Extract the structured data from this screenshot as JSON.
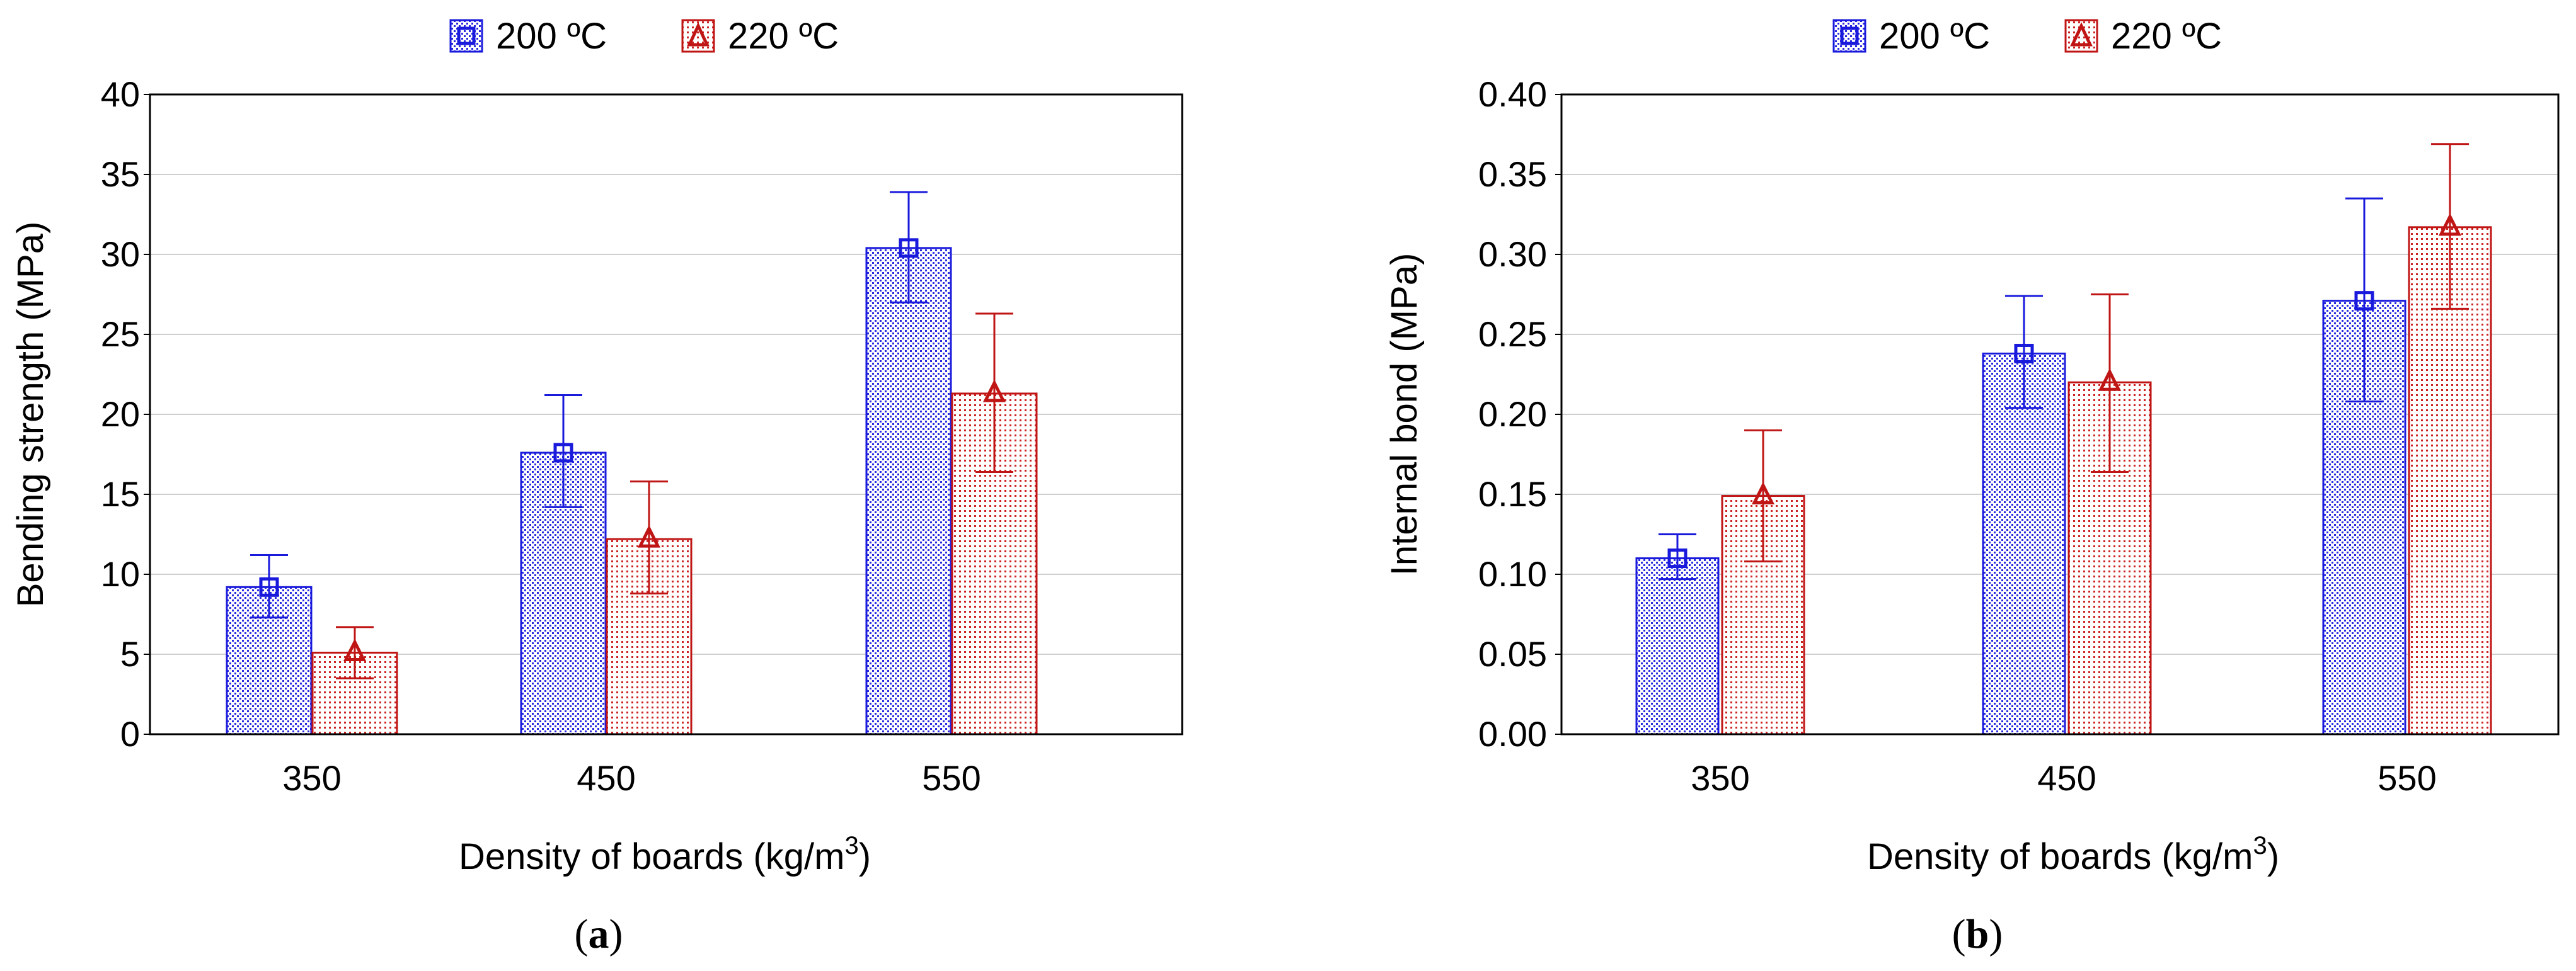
{
  "chart_data": [
    {
      "type": "bar",
      "panel_label": "a",
      "categories": [
        "350",
        "450",
        "550"
      ],
      "series": [
        {
          "name": "200 ºC",
          "color": "#1a1adc",
          "marker": "square",
          "values": [
            9.2,
            17.6,
            30.4
          ],
          "error_low": [
            7.3,
            14.2,
            27.0
          ],
          "error_high": [
            11.2,
            21.2,
            33.9
          ]
        },
        {
          "name": "220 ºC",
          "color": "#c01515",
          "marker": "triangle",
          "values": [
            5.1,
            12.2,
            21.3
          ],
          "error_low": [
            3.5,
            8.8,
            16.4
          ],
          "error_high": [
            6.7,
            15.8,
            26.3
          ]
        }
      ],
      "xlabel": "Density of boards (kg/m",
      "xlabel_superscript": "3",
      "xlabel_close": ")",
      "ylabel": "Bending strength (MPa)",
      "ylim": [
        0,
        40
      ],
      "yticks": [
        "0",
        "5",
        "10",
        "15",
        "20",
        "25",
        "30",
        "35",
        "40"
      ],
      "grid": true,
      "legend": "top-center"
    },
    {
      "type": "bar",
      "panel_label": "b",
      "categories": [
        "350",
        "450",
        "550"
      ],
      "series": [
        {
          "name": "200 ºC",
          "color": "#1a1adc",
          "marker": "square",
          "values": [
            0.11,
            0.238,
            0.271
          ],
          "error_low": [
            0.097,
            0.204,
            0.208
          ],
          "error_high": [
            0.125,
            0.274,
            0.335
          ]
        },
        {
          "name": "220 ºC",
          "color": "#c01515",
          "marker": "triangle",
          "values": [
            0.149,
            0.22,
            0.317
          ],
          "error_low": [
            0.108,
            0.164,
            0.266
          ],
          "error_high": [
            0.19,
            0.275,
            0.369
          ]
        }
      ],
      "xlabel": "Density of boards (kg/m",
      "xlabel_superscript": "3",
      "xlabel_close": ")",
      "ylabel": "Internal bond (MPa)",
      "ylim": [
        0,
        0.4
      ],
      "yticks": [
        "0.00",
        "0.05",
        "0.10",
        "0.15",
        "0.20",
        "0.25",
        "0.30",
        "0.35",
        "0.40"
      ],
      "grid": true,
      "legend": "top-center"
    }
  ]
}
